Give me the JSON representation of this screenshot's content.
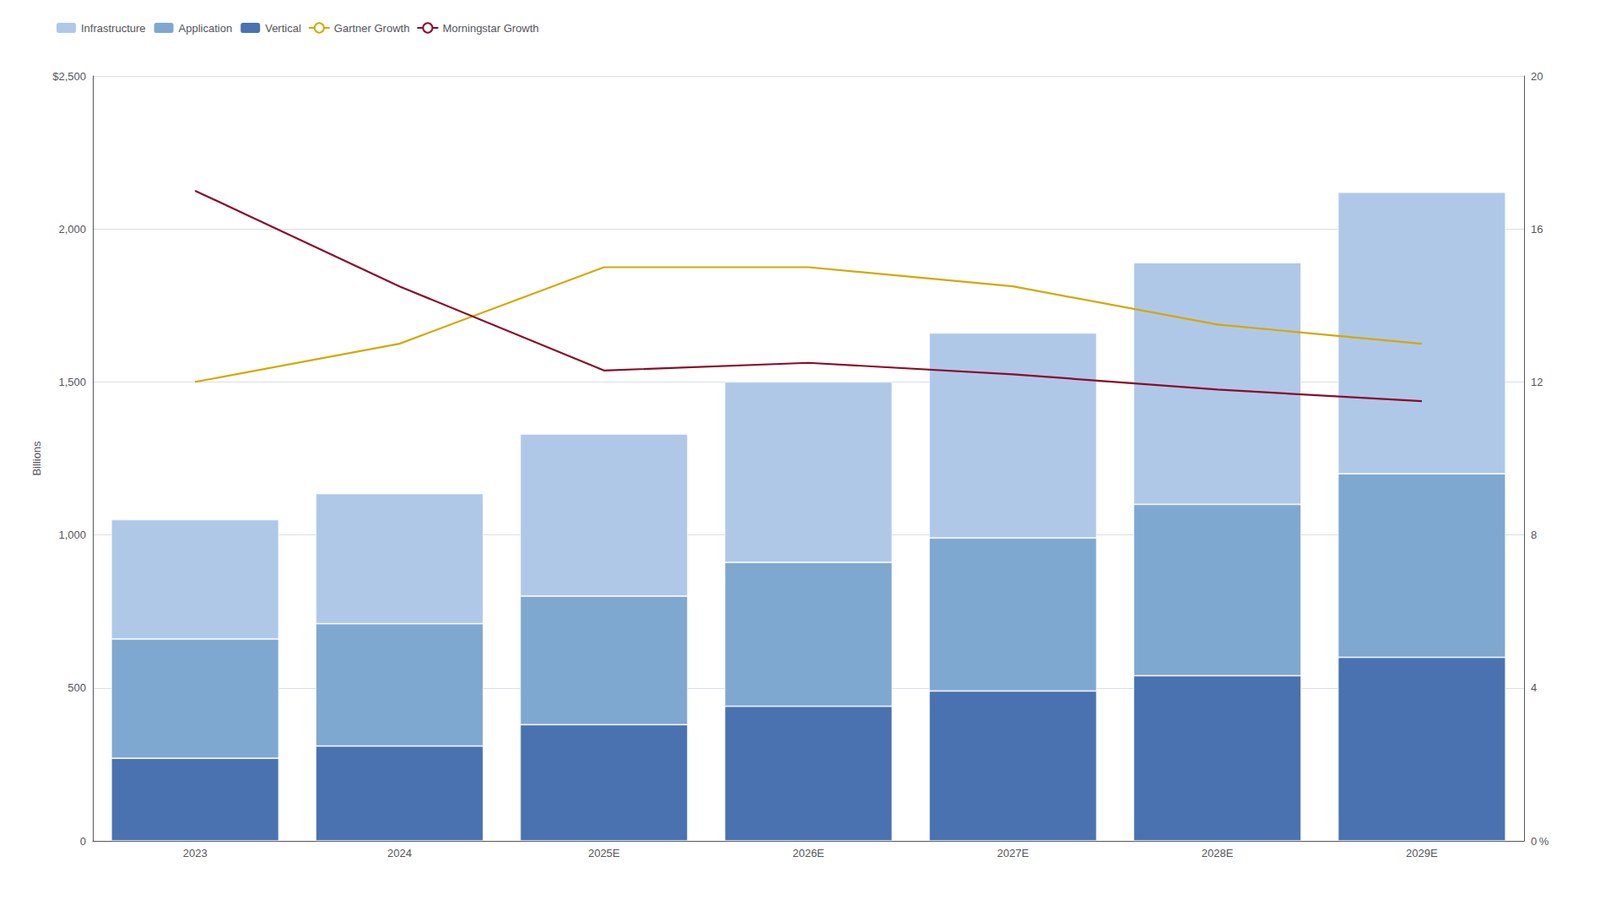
{
  "chart_data": {
    "type": "bar",
    "stacked": true,
    "categories": [
      "2023",
      "2024",
      "2025E",
      "2026E",
      "2027E",
      "2028E",
      "2029E"
    ],
    "ylabel": "Billions",
    "ylim": [
      0,
      2500
    ],
    "yticks": [
      0,
      500,
      {
        "value": 1000,
        "label": "1,000"
      },
      {
        "value": 1500,
        "label": "1,500"
      },
      {
        "value": 2000,
        "label": "2,000"
      },
      {
        "value": 2500,
        "label": "$2,500"
      }
    ],
    "y2lim": [
      0,
      20
    ],
    "y2ticks": [
      {
        "value": 0,
        "label": "0 %"
      },
      4,
      8,
      12,
      16,
      20
    ],
    "grid": true,
    "legend": "upper left",
    "series": [
      {
        "name": "Vertical",
        "type": "bar",
        "color": "#4a72b0",
        "values": [
          270,
          310,
          380,
          440,
          490,
          540,
          600
        ]
      },
      {
        "name": "Application",
        "type": "bar",
        "color": "#7fa8d1",
        "values": [
          390,
          400,
          420,
          470,
          500,
          560,
          600
        ]
      },
      {
        "name": "Infrastructure",
        "type": "bar",
        "color": "#b0c8e8",
        "values": [
          390,
          425,
          530,
          590,
          670,
          790,
          920
        ]
      },
      {
        "name": "Gartner Growth",
        "type": "line",
        "axis": "y2",
        "color": "#d4a800",
        "values": [
          12.0,
          13.0,
          15.0,
          15.0,
          14.5,
          13.5,
          13.0
        ]
      },
      {
        "name": "Morningstar Growth",
        "type": "line",
        "axis": "y2",
        "color": "#8b0a2a",
        "values": [
          17.0,
          14.5,
          12.3,
          12.5,
          12.2,
          11.8,
          11.5
        ]
      }
    ]
  }
}
